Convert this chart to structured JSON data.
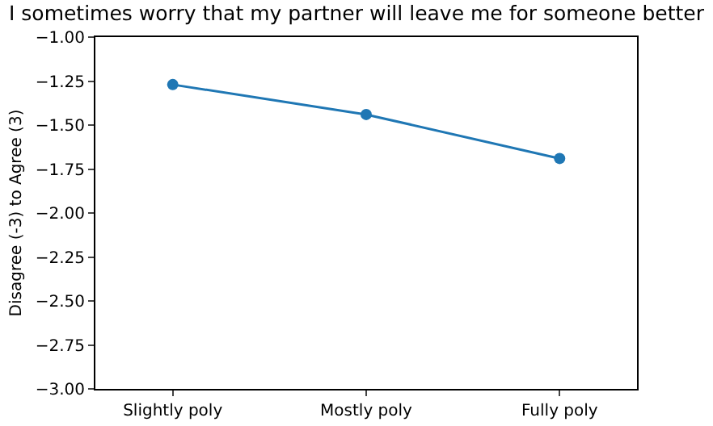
{
  "chart_data": {
    "type": "line",
    "title": "I sometimes worry that my partner will leave me for someone better",
    "ylabel": "Disagree (-3) to Agree (3)",
    "categories": [
      "Slightly poly",
      "Mostly poly",
      "Fully poly"
    ],
    "series": [
      {
        "color": "#1f77b4",
        "values": [
          -1.27,
          -1.44,
          -1.69
        ]
      }
    ],
    "ylim": [
      -3,
      -1
    ],
    "yticks": [
      {
        "value": -3,
        "label": "−3.00"
      },
      {
        "value": -2.75,
        "label": "−2.75"
      },
      {
        "value": -2.5,
        "label": "−2.50"
      },
      {
        "value": -2.25,
        "label": "−2.25"
      },
      {
        "value": -2,
        "label": "−2.00"
      },
      {
        "value": -1.75,
        "label": "−1.75"
      },
      {
        "value": -1.5,
        "label": "−1.50"
      },
      {
        "value": -1.25,
        "label": "−1.25"
      },
      {
        "value": -1,
        "label": "−1.00"
      }
    ],
    "grid": false,
    "marker": "circle",
    "line_style": "solid"
  }
}
